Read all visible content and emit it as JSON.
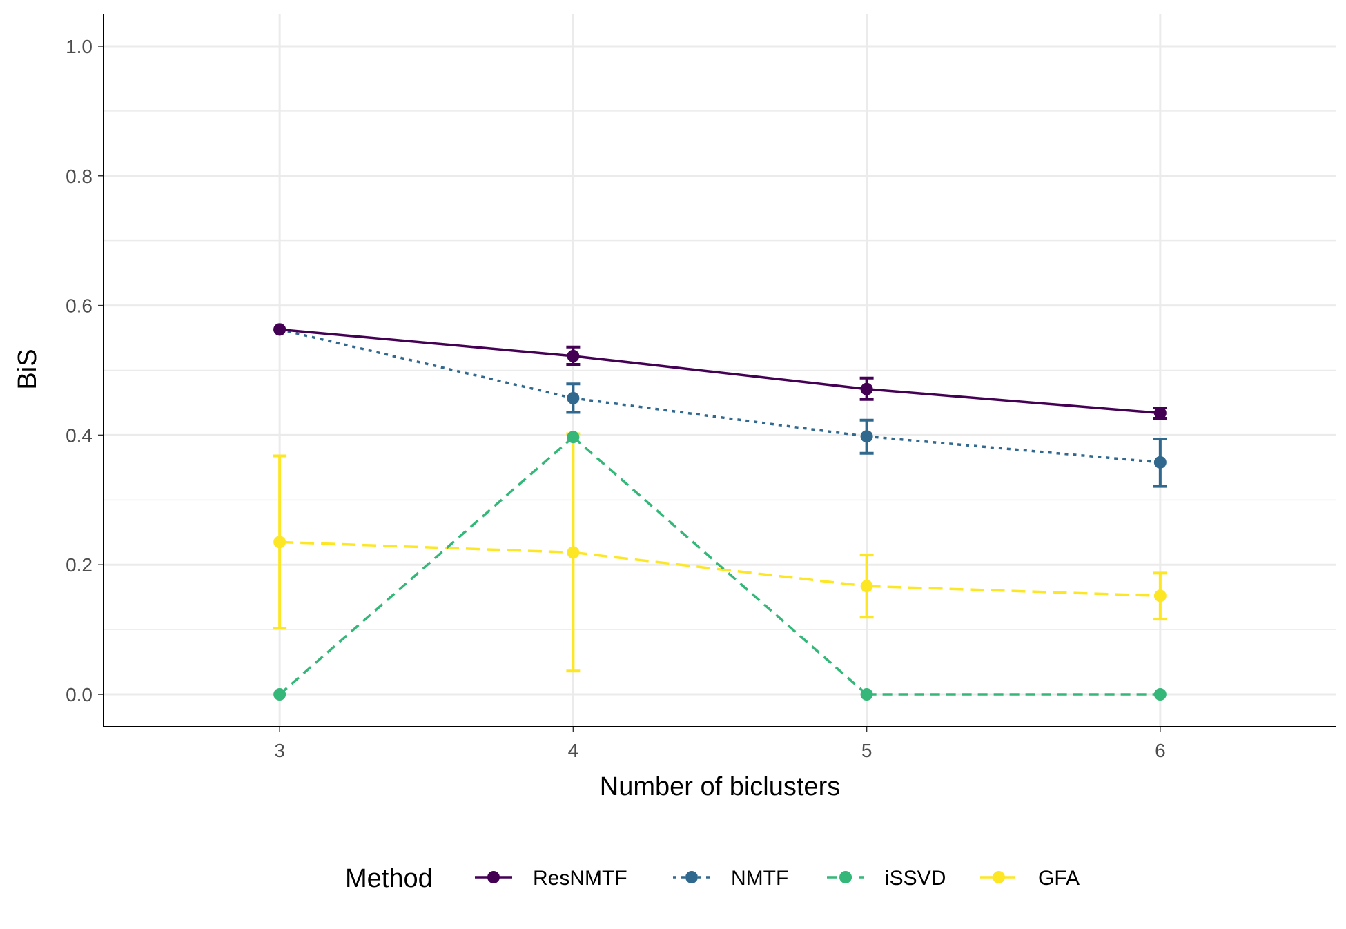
{
  "chart_data": {
    "type": "line",
    "xlabel": "Number of biclusters",
    "ylabel": "BiS",
    "x": [
      3,
      4,
      5,
      6
    ],
    "x_ticks": [
      "3",
      "4",
      "5",
      "6"
    ],
    "xlim": [
      2.4,
      6.6
    ],
    "ylim": [
      -0.05,
      1.05
    ],
    "y_ticks": [
      "0.0",
      "0.2",
      "0.4",
      "0.6",
      "0.8",
      "1.0"
    ],
    "grid": true,
    "legend": {
      "title": "Method",
      "position": "bottom"
    },
    "series": [
      {
        "name": "ResNMTF",
        "color": "#440154",
        "dash": "solid",
        "values": [
          0.563,
          0.522,
          0.471,
          0.434
        ],
        "error_low": [
          null,
          0.509,
          0.455,
          0.426
        ],
        "error_high": [
          null,
          0.536,
          0.488,
          0.442
        ]
      },
      {
        "name": "NMTF",
        "color": "#31688e",
        "dash": "dotted",
        "values": [
          0.563,
          0.457,
          0.398,
          0.358
        ],
        "error_low": [
          null,
          0.435,
          0.372,
          0.321
        ],
        "error_high": [
          null,
          0.479,
          0.423,
          0.394
        ]
      },
      {
        "name": "iSSVD",
        "color": "#35b779",
        "dash": "dashed",
        "values": [
          0.0,
          0.397,
          0.0,
          0.0
        ],
        "error_low": [
          null,
          null,
          null,
          null
        ],
        "error_high": [
          null,
          null,
          null,
          null
        ]
      },
      {
        "name": "GFA",
        "color": "#fde725",
        "dash": "longdash",
        "values": [
          0.235,
          0.219,
          0.167,
          0.152
        ],
        "error_low": [
          0.102,
          0.036,
          0.119,
          0.116
        ],
        "error_high": [
          0.368,
          0.402,
          0.215,
          0.187
        ]
      }
    ]
  }
}
